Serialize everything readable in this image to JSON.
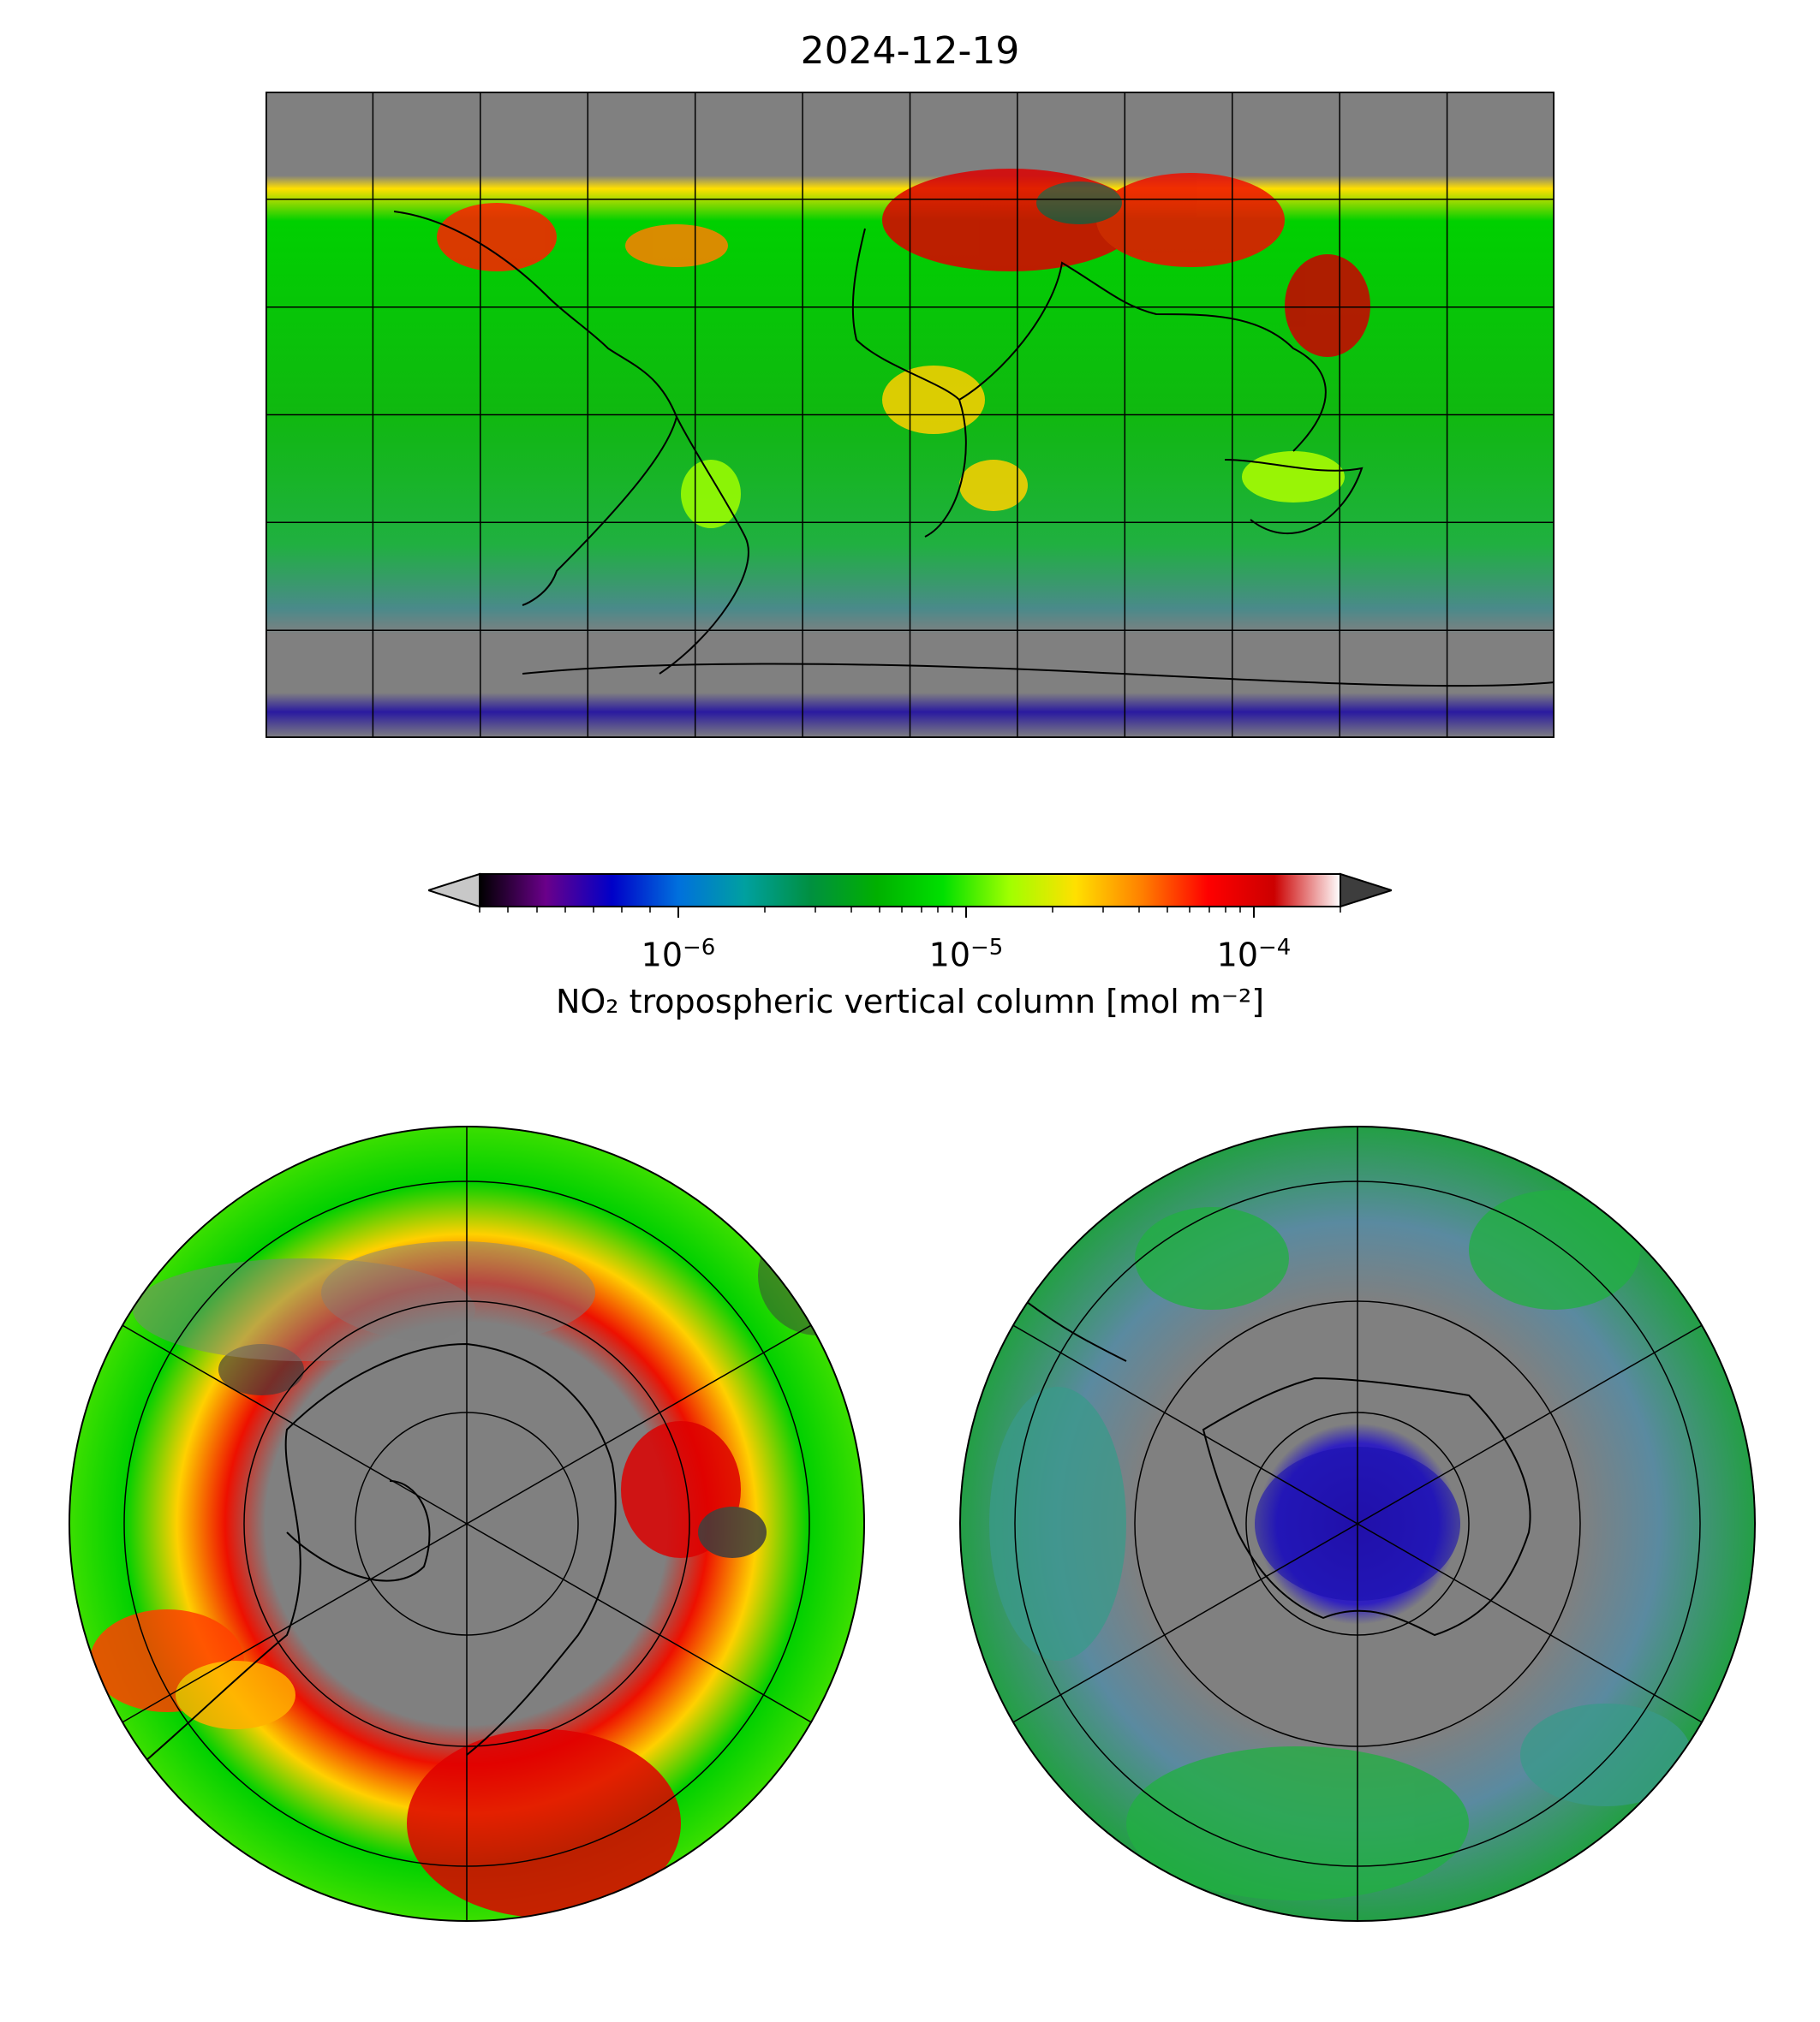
{
  "title": "2024-12-19",
  "colorbar": {
    "label": "NO₂ tropospheric vertical column [mol m⁻²]",
    "ticks": [
      {
        "base": "10",
        "exp": "−6"
      },
      {
        "base": "10",
        "exp": "−5"
      },
      {
        "base": "10",
        "exp": "−4"
      }
    ],
    "colormap": [
      "#000000",
      "#6a008a",
      "#0000c8",
      "#0070dd",
      "#00a0a0",
      "#009040",
      "#00b000",
      "#00e000",
      "#a0ff00",
      "#ffe000",
      "#ff8000",
      "#ff0000",
      "#cc0000",
      "#ffffff"
    ],
    "over_color": "#3d3d3d",
    "under_color": "#c8c8c8",
    "scale": "log"
  },
  "maps": {
    "global": {
      "projection": "PlateCarree",
      "gridlines": true,
      "no_data_color": "#808080"
    },
    "north_polar": {
      "projection": "NorthPolarStereo"
    },
    "south_polar": {
      "projection": "SouthPolarStereo"
    }
  }
}
